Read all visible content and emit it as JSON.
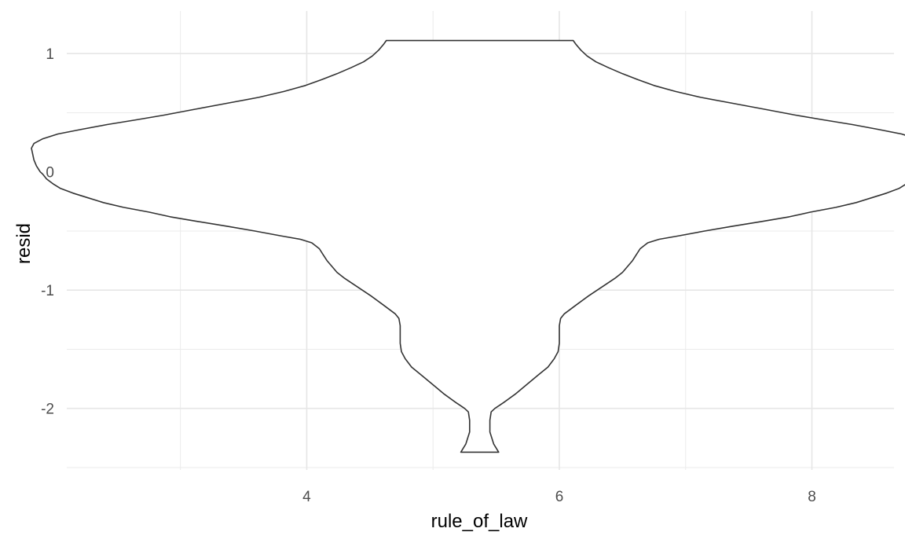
{
  "chart_data": {
    "type": "violin",
    "title": "",
    "xlabel": "rule_of_law",
    "ylabel": "resid",
    "x_ticks": [
      4,
      6,
      8
    ],
    "x_tick_labels": [
      "4",
      "6",
      "8"
    ],
    "y_ticks": [
      -2,
      -1,
      0,
      1
    ],
    "y_tick_labels": [
      "-2",
      "-1",
      "0",
      "1"
    ],
    "xlim": [
      2.1,
      8.65
    ],
    "ylim": [
      -2.52,
      1.36
    ],
    "grid": true,
    "legend": "none",
    "violin": {
      "center_x": 5.37,
      "y_min": -2.37,
      "y_max": 1.11,
      "outline": [
        [
          -2.37,
          0.15
        ],
        [
          -2.3,
          0.11
        ],
        [
          -2.2,
          0.08
        ],
        [
          -2.1,
          0.08
        ],
        [
          -2.03,
          0.09
        ],
        [
          -2.0,
          0.12
        ],
        [
          -1.95,
          0.19
        ],
        [
          -1.88,
          0.28
        ],
        [
          -1.8,
          0.37
        ],
        [
          -1.72,
          0.46
        ],
        [
          -1.65,
          0.54
        ],
        [
          -1.58,
          0.59
        ],
        [
          -1.52,
          0.62
        ],
        [
          -1.45,
          0.63
        ],
        [
          -1.3,
          0.63
        ],
        [
          -1.24,
          0.64
        ],
        [
          -1.2,
          0.67
        ],
        [
          -1.12,
          0.77
        ],
        [
          -1.05,
          0.86
        ],
        [
          -1.0,
          0.93
        ],
        [
          -0.95,
          1.0
        ],
        [
          -0.9,
          1.07
        ],
        [
          -0.85,
          1.13
        ],
        [
          -0.8,
          1.17
        ],
        [
          -0.75,
          1.21
        ],
        [
          -0.7,
          1.24
        ],
        [
          -0.65,
          1.27
        ],
        [
          -0.6,
          1.33
        ],
        [
          -0.57,
          1.42
        ],
        [
          -0.54,
          1.58
        ],
        [
          -0.5,
          1.78
        ],
        [
          -0.46,
          2.0
        ],
        [
          -0.42,
          2.23
        ],
        [
          -0.38,
          2.45
        ],
        [
          -0.34,
          2.62
        ],
        [
          -0.3,
          2.82
        ],
        [
          -0.26,
          2.98
        ],
        [
          -0.22,
          3.1
        ],
        [
          -0.18,
          3.22
        ],
        [
          -0.14,
          3.32
        ],
        [
          -0.1,
          3.38
        ],
        [
          -0.06,
          3.43
        ],
        [
          -0.02,
          3.46
        ],
        [
          0.0,
          3.48
        ],
        [
          0.05,
          3.51
        ],
        [
          0.1,
          3.53
        ],
        [
          0.15,
          3.54
        ],
        [
          0.2,
          3.55
        ],
        [
          0.24,
          3.53
        ],
        [
          0.28,
          3.46
        ],
        [
          0.32,
          3.34
        ],
        [
          0.36,
          3.15
        ],
        [
          0.4,
          2.95
        ],
        [
          0.44,
          2.72
        ],
        [
          0.48,
          2.5
        ],
        [
          0.53,
          2.25
        ],
        [
          0.58,
          2.0
        ],
        [
          0.63,
          1.75
        ],
        [
          0.68,
          1.55
        ],
        [
          0.73,
          1.38
        ],
        [
          0.78,
          1.25
        ],
        [
          0.83,
          1.13
        ],
        [
          0.88,
          1.02
        ],
        [
          0.93,
          0.92
        ],
        [
          0.98,
          0.85
        ],
        [
          1.03,
          0.8
        ],
        [
          1.08,
          0.76
        ],
        [
          1.11,
          0.74
        ]
      ]
    }
  }
}
